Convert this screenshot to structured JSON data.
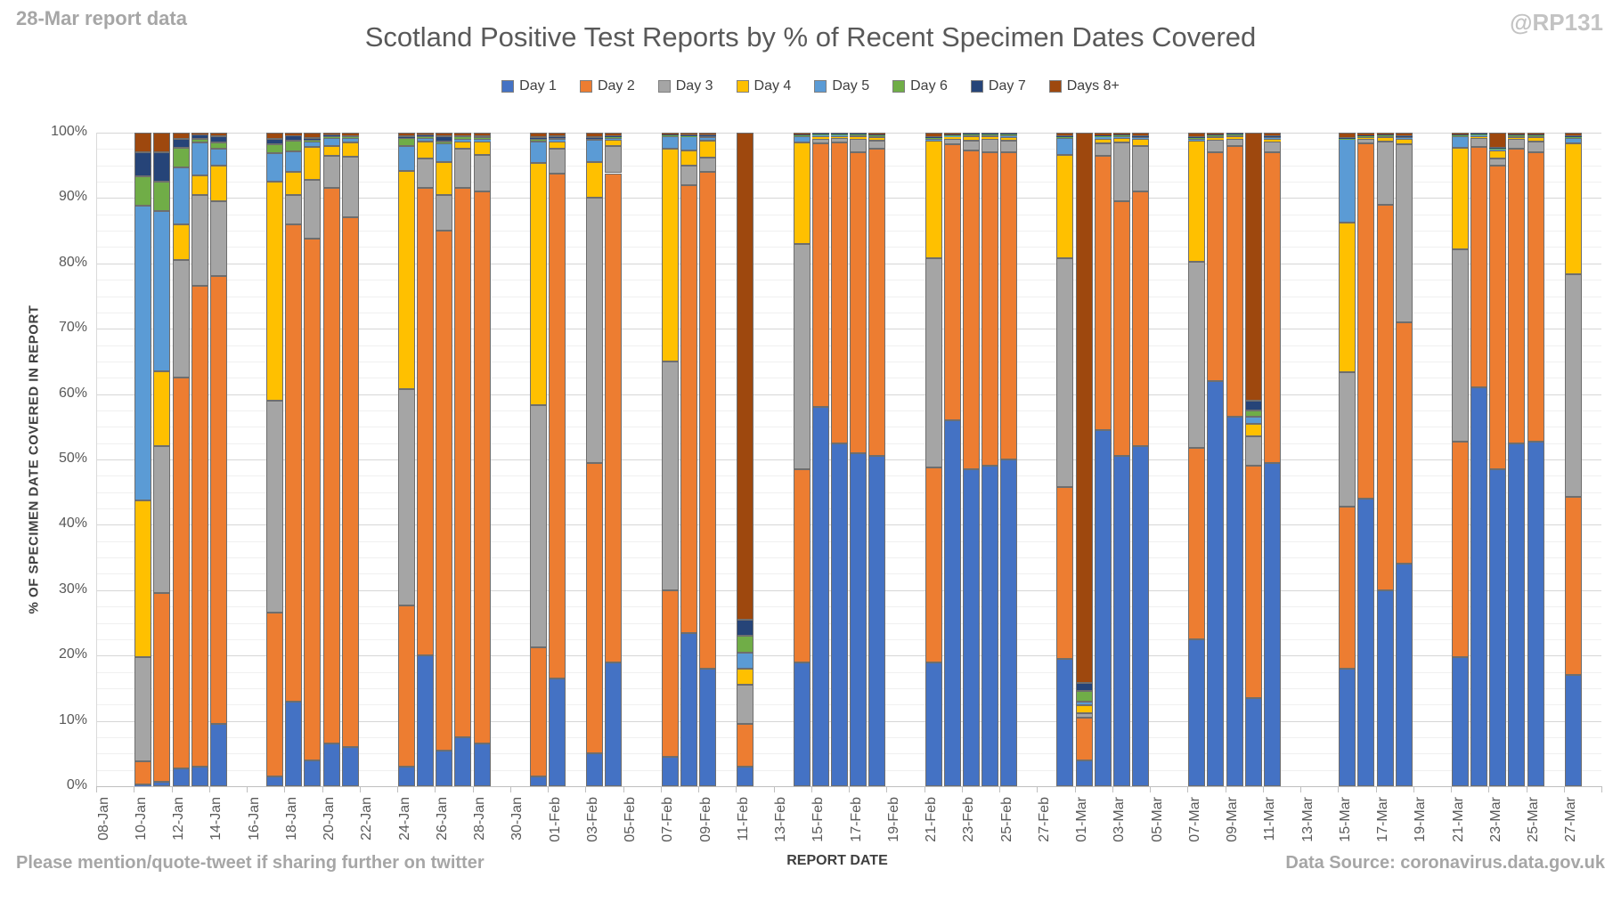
{
  "header": {
    "report_note": "28-Mar report data",
    "title": "Scotland Positive Test Reports by % of Recent Specimen Dates Covered",
    "handle": "@RP131"
  },
  "footer": {
    "left": "Please mention/quote-tweet if sharing further on twitter",
    "xlabel": "REPORT DATE",
    "right": "Data Source: coronavirus.data.gov.uk"
  },
  "chart_data": {
    "type": "bar",
    "stacked": true,
    "stack_unit": "percent of report",
    "title": "Scotland Positive Test Reports by % of Recent Specimen Dates Covered",
    "xlabel": "REPORT DATE",
    "ylabel": "% OF SPECIMEN DATE COVERED IN REPORT",
    "ylim": [
      0,
      100
    ],
    "grid": true,
    "legend_position": "top",
    "y_tick_labels": [
      "0%",
      "10%",
      "20%",
      "30%",
      "40%",
      "50%",
      "60%",
      "70%",
      "80%",
      "90%",
      "100%"
    ],
    "x_tick_labels": [
      "08-Jan",
      "10-Jan",
      "12-Jan",
      "14-Jan",
      "16-Jan",
      "18-Jan",
      "20-Jan",
      "22-Jan",
      "24-Jan",
      "26-Jan",
      "28-Jan",
      "30-Jan",
      "01-Feb",
      "03-Feb",
      "05-Feb",
      "07-Feb",
      "09-Feb",
      "11-Feb",
      "13-Feb",
      "15-Feb",
      "17-Feb",
      "19-Feb",
      "21-Feb",
      "23-Feb",
      "25-Feb",
      "27-Feb",
      "01-Mar",
      "03-Mar",
      "05-Mar",
      "07-Mar",
      "09-Mar",
      "11-Mar",
      "13-Mar",
      "15-Mar",
      "17-Mar",
      "19-Mar",
      "21-Mar",
      "23-Mar",
      "25-Mar",
      "27-Mar"
    ],
    "x_axis_start_label": "08-Jan",
    "x_axis_span_days": 80,
    "series": [
      {
        "name": "Day 1",
        "color": "#4472C4"
      },
      {
        "name": "Day 2",
        "color": "#ED7D31"
      },
      {
        "name": "Day 3",
        "color": "#A5A5A5"
      },
      {
        "name": "Day 4",
        "color": "#FFC000"
      },
      {
        "name": "Day 5",
        "color": "#5B9BD5"
      },
      {
        "name": "Day 6",
        "color": "#70AD47"
      },
      {
        "name": "Day 7",
        "color": "#264478"
      },
      {
        "name": "Days 8+",
        "color": "#9E480E"
      }
    ],
    "bars": [
      {
        "date": "10-Jan",
        "offset": 2,
        "v": [
          0.3,
          3.5,
          16,
          24,
          45,
          4.5,
          3.7,
          3
        ]
      },
      {
        "date": "11-Jan",
        "offset": 3,
        "v": [
          0.7,
          28.8,
          22.5,
          11.5,
          24.5,
          4.5,
          4.5,
          3
        ]
      },
      {
        "date": "12-Jan",
        "offset": 4,
        "v": [
          2.7,
          59.8,
          18,
          5.5,
          8.7,
          3,
          1.3,
          1
        ]
      },
      {
        "date": "13-Jan",
        "offset": 5,
        "v": [
          3,
          73.5,
          14,
          3,
          5,
          0.5,
          0.7,
          0.3
        ]
      },
      {
        "date": "14-Jan",
        "offset": 6,
        "v": [
          9.5,
          68.5,
          11.5,
          5.5,
          2.5,
          1,
          1,
          0.5
        ]
      },
      {
        "date": "17-Jan",
        "offset": 9,
        "v": [
          1.5,
          25,
          32.5,
          33.5,
          4.3,
          1.4,
          0.8,
          1
        ]
      },
      {
        "date": "18-Jan",
        "offset": 10,
        "v": [
          13,
          73,
          4.5,
          3.5,
          3.1,
          1.7,
          0.8,
          0.4
        ]
      },
      {
        "date": "19-Jan",
        "offset": 11,
        "v": [
          4,
          79.8,
          9,
          5,
          0.9,
          0.2,
          0.3,
          0.8
        ]
      },
      {
        "date": "20-Jan",
        "offset": 12,
        "v": [
          6.5,
          85,
          5,
          1.5,
          1.2,
          0.3,
          0.2,
          0.3
        ]
      },
      {
        "date": "21-Jan",
        "offset": 13,
        "v": [
          6,
          81,
          9.3,
          2.2,
          0.7,
          0.2,
          0.2,
          0.4
        ]
      },
      {
        "date": "24-Jan",
        "offset": 16,
        "v": [
          3,
          24.7,
          33,
          33.5,
          3.7,
          1.3,
          0.3,
          0.5
        ]
      },
      {
        "date": "25-Jan",
        "offset": 17,
        "v": [
          20,
          71.5,
          4.5,
          2.7,
          0.5,
          0.3,
          0.2,
          0.3
        ]
      },
      {
        "date": "26-Jan",
        "offset": 18,
        "v": [
          5.5,
          79.5,
          5.5,
          5,
          2.9,
          0.2,
          0.9,
          0.5
        ]
      },
      {
        "date": "27-Jan",
        "offset": 19,
        "v": [
          7.5,
          84,
          6,
          1.2,
          0.3,
          0.4,
          0.2,
          0.4
        ]
      },
      {
        "date": "28-Jan",
        "offset": 20,
        "v": [
          6.5,
          84.5,
          5.6,
          2.1,
          0.4,
          0.2,
          0.2,
          0.5
        ]
      },
      {
        "date": "31-Jan",
        "offset": 23,
        "v": [
          1.5,
          19.8,
          37,
          37,
          3.3,
          0.5,
          0.2,
          0.7
        ]
      },
      {
        "date": "01-Feb",
        "offset": 24,
        "v": [
          16.5,
          77.2,
          3.8,
          1.1,
          0.4,
          0.2,
          0.2,
          0.6
        ]
      },
      {
        "date": "03-Feb",
        "offset": 26,
        "v": [
          5,
          44.5,
          40.5,
          5.5,
          3.4,
          0.2,
          0.2,
          0.7
        ]
      },
      {
        "date": "04-Feb",
        "offset": 27,
        "v": [
          19,
          74.8,
          4.2,
          0.9,
          0.3,
          0.1,
          0.1,
          0.6
        ]
      },
      {
        "date": "07-Feb",
        "offset": 30,
        "v": [
          4.5,
          25.5,
          35,
          32.5,
          2,
          0.1,
          0.1,
          0.3
        ]
      },
      {
        "date": "08-Feb",
        "offset": 31,
        "v": [
          23.5,
          68.5,
          3,
          2.3,
          2.1,
          0.1,
          0.2,
          0.3
        ]
      },
      {
        "date": "09-Feb",
        "offset": 32,
        "v": [
          18,
          76,
          2.2,
          2.6,
          0.5,
          0.2,
          0.2,
          0.3
        ]
      },
      {
        "date": "11-Feb",
        "offset": 34,
        "v": [
          3,
          6.5,
          6,
          2.5,
          2.5,
          2.5,
          2.5,
          74.5
        ]
      },
      {
        "date": "14-Feb",
        "offset": 37,
        "v": [
          19,
          29.5,
          34.5,
          15.5,
          1,
          0.1,
          0.1,
          0.3
        ]
      },
      {
        "date": "15-Feb",
        "offset": 38,
        "v": [
          58,
          40.3,
          0.8,
          0.4,
          0.1,
          0.1,
          0.1,
          0.2
        ]
      },
      {
        "date": "16-Feb",
        "offset": 39,
        "v": [
          52.5,
          46,
          0.7,
          0.3,
          0.1,
          0.1,
          0.1,
          0.2
        ]
      },
      {
        "date": "17-Feb",
        "offset": 40,
        "v": [
          51,
          46,
          2,
          0.4,
          0.2,
          0.1,
          0.1,
          0.2
        ]
      },
      {
        "date": "18-Feb",
        "offset": 41,
        "v": [
          50.5,
          47,
          1.3,
          0.5,
          0.2,
          0.1,
          0.1,
          0.3
        ]
      },
      {
        "date": "21-Feb",
        "offset": 44,
        "v": [
          19,
          29.8,
          32,
          18,
          0.3,
          0.1,
          0.1,
          0.7
        ]
      },
      {
        "date": "22-Feb",
        "offset": 45,
        "v": [
          56,
          42.2,
          0.8,
          0.4,
          0.1,
          0.1,
          0.1,
          0.3
        ]
      },
      {
        "date": "23-Feb",
        "offset": 46,
        "v": [
          48.5,
          48.8,
          1.5,
          0.6,
          0.2,
          0.1,
          0.1,
          0.2
        ]
      },
      {
        "date": "24-Feb",
        "offset": 47,
        "v": [
          49,
          48,
          2,
          0.4,
          0.2,
          0.1,
          0.1,
          0.2
        ]
      },
      {
        "date": "25-Feb",
        "offset": 48,
        "v": [
          50,
          47,
          1.8,
          0.5,
          0.3,
          0.1,
          0.1,
          0.2
        ]
      },
      {
        "date": "28-Feb",
        "offset": 51,
        "v": [
          19.5,
          26.3,
          35,
          15.8,
          2.6,
          0.1,
          0.1,
          0.6
        ]
      },
      {
        "date": "01-Mar",
        "offset": 52,
        "v": [
          4,
          6.5,
          0.7,
          1.2,
          0.6,
          1.6,
          1.2,
          84.2
        ]
      },
      {
        "date": "02-Mar",
        "offset": 53,
        "v": [
          54.5,
          42,
          1.9,
          0.7,
          0.3,
          0.1,
          0.1,
          0.4
        ]
      },
      {
        "date": "03-Mar",
        "offset": 54,
        "v": [
          50.5,
          39,
          9,
          0.7,
          0.3,
          0.1,
          0.1,
          0.3
        ]
      },
      {
        "date": "04-Mar",
        "offset": 55,
        "v": [
          52,
          39,
          7,
          1,
          0.3,
          0.1,
          0.1,
          0.5
        ]
      },
      {
        "date": "07-Mar",
        "offset": 58,
        "v": [
          22.5,
          29.3,
          28.5,
          18.5,
          0.3,
          0.1,
          0.1,
          0.7
        ]
      },
      {
        "date": "08-Mar",
        "offset": 59,
        "v": [
          62,
          35,
          1.9,
          0.4,
          0.2,
          0.1,
          0.1,
          0.3
        ]
      },
      {
        "date": "09-Mar",
        "offset": 60,
        "v": [
          56.5,
          41.5,
          1.1,
          0.3,
          0.2,
          0.1,
          0.1,
          0.2
        ]
      },
      {
        "date": "10-Mar",
        "offset": 61,
        "v": [
          13.5,
          35.5,
          4.5,
          2,
          1,
          1,
          1.5,
          41
        ]
      },
      {
        "date": "11-Mar",
        "offset": 62,
        "v": [
          49.5,
          47.5,
          1.7,
          0.4,
          0.2,
          0.1,
          0.1,
          0.5
        ]
      },
      {
        "date": "15-Mar",
        "offset": 66,
        "v": [
          18,
          24.8,
          20.5,
          23,
          12.7,
          0.1,
          0.1,
          0.8
        ]
      },
      {
        "date": "16-Mar",
        "offset": 67,
        "v": [
          44,
          54.4,
          0.7,
          0.2,
          0.1,
          0.1,
          0.1,
          0.4
        ]
      },
      {
        "date": "17-Mar",
        "offset": 68,
        "v": [
          30,
          59,
          9.6,
          0.7,
          0.2,
          0.1,
          0.1,
          0.3
        ]
      },
      {
        "date": "18-Mar",
        "offset": 69,
        "v": [
          34,
          37,
          27.2,
          0.9,
          0.2,
          0.1,
          0.1,
          0.5
        ]
      },
      {
        "date": "21-Mar",
        "offset": 72,
        "v": [
          19.7,
          33,
          29.5,
          15.5,
          1.8,
          0.1,
          0.1,
          0.3
        ]
      },
      {
        "date": "22-Mar",
        "offset": 73,
        "v": [
          61,
          36.8,
          1.4,
          0.3,
          0.1,
          0.1,
          0.1,
          0.2
        ]
      },
      {
        "date": "23-Mar",
        "offset": 74,
        "v": [
          48.5,
          46.5,
          1.1,
          1.2,
          0.2,
          0.1,
          0.1,
          2.3
        ]
      },
      {
        "date": "24-Mar",
        "offset": 75,
        "v": [
          52.5,
          45,
          1.5,
          0.3,
          0.2,
          0.1,
          0.1,
          0.3
        ]
      },
      {
        "date": "25-Mar",
        "offset": 76,
        "v": [
          52.7,
          44.3,
          1.7,
          0.6,
          0.2,
          0.1,
          0.1,
          0.3
        ]
      },
      {
        "date": "27-Mar",
        "offset": 78,
        "v": [
          17,
          27.3,
          34,
          20,
          0.9,
          0.1,
          0.1,
          0.6
        ]
      }
    ]
  }
}
